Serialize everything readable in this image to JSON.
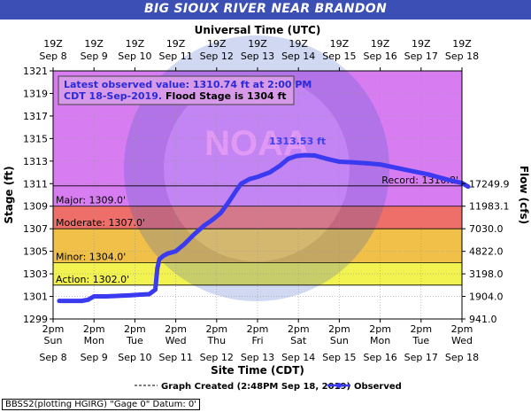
{
  "header": {
    "title": "BIG SIOUX RIVER NEAR BRANDON"
  },
  "chart_data": {
    "type": "line",
    "title": "BIG SIOUX RIVER NEAR BRANDON",
    "top_axis_label": "Universal Time (UTC)",
    "xlabel": "Site Time (CDT)",
    "ylabel": "Stage (ft)",
    "y2label": "Flow (cfs)",
    "ylim": [
      1299,
      1321
    ],
    "yticks": [
      1299,
      1301,
      1303,
      1305,
      1307,
      1309,
      1311,
      1313,
      1315,
      1317,
      1319,
      1321
    ],
    "right_ticks": [
      {
        "stage": 1299,
        "label": "941.0"
      },
      {
        "stage": 1301,
        "label": "1904.0"
      },
      {
        "stage": 1303,
        "label": "3198.0"
      },
      {
        "stage": 1305,
        "label": "4822.0"
      },
      {
        "stage": 1307,
        "label": "7030.0"
      },
      {
        "stage": 1309,
        "label": "11983.1"
      },
      {
        "stage": 1311,
        "label": "17249.9"
      }
    ],
    "xticks_bottom": [
      {
        "day": 0,
        "l1": "2pm",
        "l2": "Sun",
        "l3": "Sep 8"
      },
      {
        "day": 1,
        "l1": "2pm",
        "l2": "Mon",
        "l3": "Sep 9"
      },
      {
        "day": 2,
        "l1": "2pm",
        "l2": "Tue",
        "l3": "Sep 10"
      },
      {
        "day": 3,
        "l1": "2pm",
        "l2": "Wed",
        "l3": "Sep 11"
      },
      {
        "day": 4,
        "l1": "2pm",
        "l2": "Thu",
        "l3": "Sep 12"
      },
      {
        "day": 5,
        "l1": "2pm",
        "l2": "Fri",
        "l3": "Sep 13"
      },
      {
        "day": 6,
        "l1": "2pm",
        "l2": "Sat",
        "l3": "Sep 14"
      },
      {
        "day": 7,
        "l1": "2pm",
        "l2": "Sun",
        "l3": "Sep 15"
      },
      {
        "day": 8,
        "l1": "2pm",
        "l2": "Mon",
        "l3": "Sep 16"
      },
      {
        "day": 9,
        "l1": "2pm",
        "l2": "Tue",
        "l3": "Sep 17"
      },
      {
        "day": 10,
        "l1": "2pm",
        "l2": "Wed",
        "l3": "Sep 18"
      }
    ],
    "xticks_top": [
      {
        "day": 0,
        "l1": "19Z",
        "l2": "Sep 8"
      },
      {
        "day": 1,
        "l1": "19Z",
        "l2": "Sep 9"
      },
      {
        "day": 2,
        "l1": "19Z",
        "l2": "Sep 10"
      },
      {
        "day": 3,
        "l1": "19Z",
        "l2": "Sep 11"
      },
      {
        "day": 4,
        "l1": "19Z",
        "l2": "Sep 12"
      },
      {
        "day": 5,
        "l1": "19Z",
        "l2": "Sep 13"
      },
      {
        "day": 6,
        "l1": "19Z",
        "l2": "Sep 14"
      },
      {
        "day": 7,
        "l1": "19Z",
        "l2": "Sep 15"
      },
      {
        "day": 8,
        "l1": "19Z",
        "l2": "Sep 16"
      },
      {
        "day": 9,
        "l1": "19Z",
        "l2": "Sep 17"
      },
      {
        "day": 10,
        "l1": "19Z",
        "l2": "Sep 18"
      }
    ],
    "flood_categories": [
      {
        "name": "Action",
        "label": "Action: 1302.0'",
        "stage": 1302.0,
        "color": "#f2f250"
      },
      {
        "name": "Minor",
        "label": "Minor: 1304.0'",
        "stage": 1304.0,
        "color": "#f0c048"
      },
      {
        "name": "Moderate",
        "label": "Moderate: 1307.0'",
        "stage": 1307.0,
        "color": "#ee6e6a"
      },
      {
        "name": "Major",
        "label": "Major: 1309.0'",
        "stage": 1309.0,
        "color": "#cc66ee"
      }
    ],
    "record": {
      "label": "Record: 1310.8'",
      "stage": 1310.8
    },
    "band_colors": {
      "below": "#ffffff",
      "action": "#f2f250",
      "minor": "#f0c048",
      "moderate": "#ee6e6a",
      "major": "#cc66ee",
      "above_major": "#d87cf2"
    },
    "crest_label": "1313.53 ft",
    "latest_box": {
      "line1": "Latest observed value: 1310.74 ft at 2:00 PM",
      "line2_blue": "CDT 18-Sep-2019.",
      "line2_black": "Flood Stage is 1304 ft"
    },
    "series": [
      {
        "name": "Observed",
        "color": "#3a3af0",
        "points": [
          [
            0.15,
            1300.6
          ],
          [
            0.4,
            1300.6
          ],
          [
            0.7,
            1300.6
          ],
          [
            0.85,
            1300.7
          ],
          [
            1.0,
            1301.0
          ],
          [
            1.3,
            1301.0
          ],
          [
            1.6,
            1301.05
          ],
          [
            1.9,
            1301.1
          ],
          [
            2.1,
            1301.15
          ],
          [
            2.35,
            1301.2
          ],
          [
            2.5,
            1301.6
          ],
          [
            2.55,
            1303.5
          ],
          [
            2.6,
            1304.3
          ],
          [
            2.7,
            1304.6
          ],
          [
            2.8,
            1304.8
          ],
          [
            3.0,
            1305.0
          ],
          [
            3.2,
            1305.6
          ],
          [
            3.45,
            1306.5
          ],
          [
            3.7,
            1307.3
          ],
          [
            3.9,
            1307.8
          ],
          [
            4.1,
            1308.4
          ],
          [
            4.3,
            1309.4
          ],
          [
            4.5,
            1310.5
          ],
          [
            4.6,
            1311.0
          ],
          [
            4.8,
            1311.4
          ],
          [
            5.0,
            1311.6
          ],
          [
            5.3,
            1312.0
          ],
          [
            5.55,
            1312.6
          ],
          [
            5.75,
            1313.2
          ],
          [
            5.95,
            1313.45
          ],
          [
            6.15,
            1313.53
          ],
          [
            6.4,
            1313.5
          ],
          [
            6.7,
            1313.2
          ],
          [
            7.0,
            1312.95
          ],
          [
            7.3,
            1312.9
          ],
          [
            7.7,
            1312.8
          ],
          [
            8.0,
            1312.7
          ],
          [
            8.4,
            1312.4
          ],
          [
            8.8,
            1312.1
          ],
          [
            9.2,
            1311.8
          ],
          [
            9.6,
            1311.4
          ],
          [
            10.0,
            1311.05
          ],
          [
            10.15,
            1310.74
          ]
        ]
      }
    ],
    "legend": {
      "created_label": "Graph Created (2:48PM Sep 18, 2019)",
      "observed_label": "Observed"
    },
    "grid": true
  },
  "footer": {
    "text": "BBSS2(plotting HGIRG) \"Gage 0\" Datum: 0'"
  }
}
